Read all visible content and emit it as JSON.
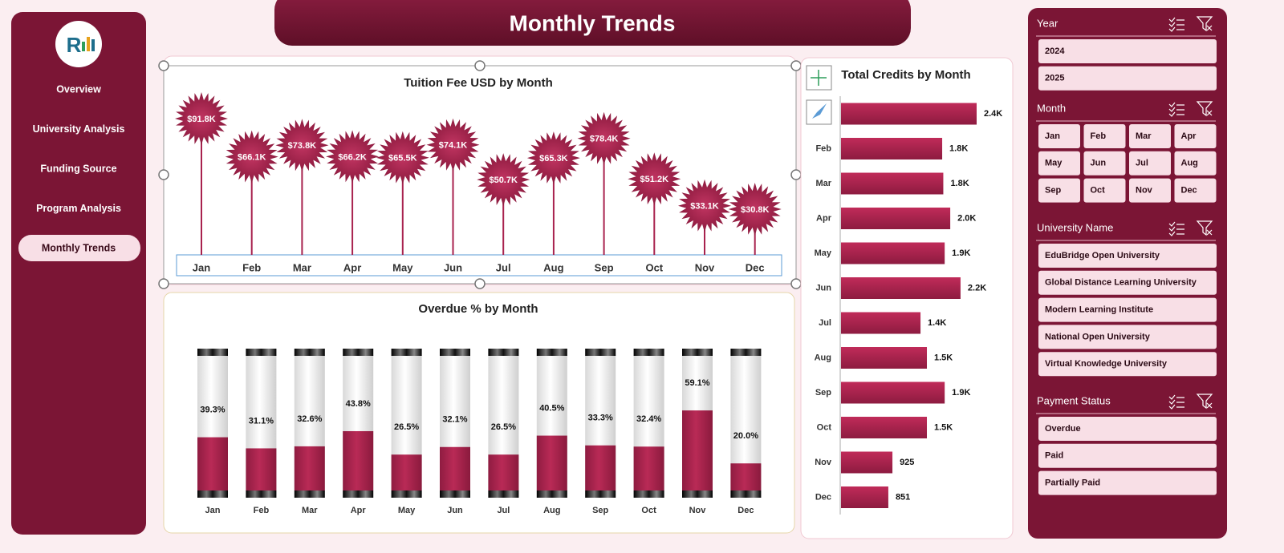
{
  "sidebar": {
    "nav": [
      "Overview",
      "University Analysis",
      "Funding Source",
      "Program Analysis",
      "Monthly Trends"
    ],
    "active_index": 4
  },
  "header": {
    "title": "Monthly Trends"
  },
  "chart_data": [
    {
      "type": "lollipop",
      "title": "Tuition Fee USD by Month",
      "color": "#a8224e",
      "categories": [
        "Jan",
        "Feb",
        "Mar",
        "Apr",
        "May",
        "Jun",
        "Jul",
        "Aug",
        "Sep",
        "Oct",
        "Nov",
        "Dec"
      ],
      "values": [
        91.8,
        66.1,
        73.8,
        66.2,
        65.5,
        74.1,
        50.7,
        65.3,
        78.4,
        51.2,
        33.1,
        30.8
      ],
      "value_labels": [
        "$91.8K",
        "$66.1K",
        "$73.8K",
        "$66.2K",
        "$65.5K",
        "$74.1K",
        "$50.7K",
        "$65.3K",
        "$78.4K",
        "$51.2K",
        "$33.1K",
        "$30.8K"
      ]
    },
    {
      "type": "cylinder",
      "title": "Overdue % by Month",
      "color": "#a8224e",
      "ylim": [
        0,
        100
      ],
      "categories": [
        "Jan",
        "Feb",
        "Mar",
        "Apr",
        "May",
        "Jun",
        "Jul",
        "Aug",
        "Sep",
        "Oct",
        "Nov",
        "Dec"
      ],
      "values": [
        39.3,
        31.1,
        32.6,
        43.8,
        26.5,
        32.1,
        26.5,
        40.5,
        33.3,
        32.4,
        59.1,
        20.0
      ],
      "value_labels": [
        "39.3%",
        "31.1%",
        "32.6%",
        "43.8%",
        "26.5%",
        "32.1%",
        "26.5%",
        "40.5%",
        "33.3%",
        "32.4%",
        "59.1%",
        "20.0%"
      ]
    },
    {
      "type": "hbar",
      "title": "Total Credits by Month",
      "color": "#a8224e",
      "categories": [
        null,
        "Feb",
        "Mar",
        "Apr",
        "May",
        "Jun",
        "Jul",
        "Aug",
        "Sep",
        "Oct",
        "Nov",
        "Dec"
      ],
      "values": [
        2440,
        1820,
        1840,
        1965,
        1865,
        2150,
        1430,
        1545,
        1865,
        1545,
        925,
        851
      ],
      "value_labels": [
        "2.4K",
        "1.8K",
        "1.8K",
        "2.0K",
        "1.9K",
        "2.2K",
        "1.4K",
        "1.5K",
        "1.9K",
        "1.5K",
        "925",
        "851"
      ]
    }
  ],
  "slicers": [
    {
      "title": "Year",
      "items": [
        "2024",
        "2025"
      ],
      "columns": 1
    },
    {
      "title": "Month",
      "items": [
        "Jan",
        "Feb",
        "Mar",
        "Apr",
        "May",
        "Jun",
        "Jul",
        "Aug",
        "Sep",
        "Oct",
        "Nov",
        "Dec"
      ],
      "columns": 4
    },
    {
      "title": "University Name",
      "items": [
        "EduBridge Open University",
        "Global Distance Learning University",
        "Modern Learning Institute",
        "National Open University",
        "Virtual Knowledge University"
      ],
      "columns": 1
    },
    {
      "title": "Payment Status",
      "items": [
        "Overdue",
        "Paid",
        "Partially Paid"
      ],
      "columns": 1
    }
  ]
}
